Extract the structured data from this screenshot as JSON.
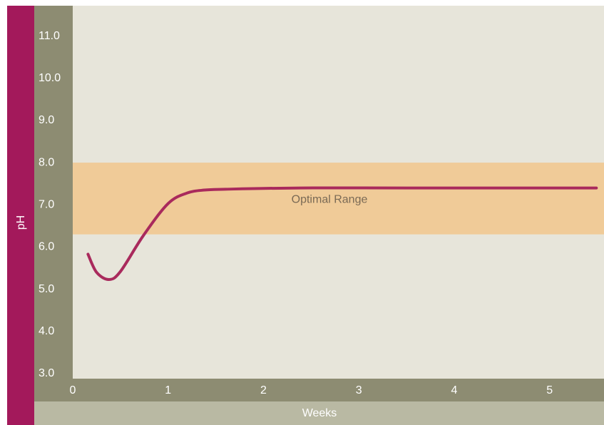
{
  "chart_data": {
    "type": "line",
    "y_label": "pH",
    "x_label": "Weeks",
    "x": [
      0.16,
      0.25,
      0.38,
      0.5,
      0.74,
      1.0,
      1.2,
      1.38,
      1.6,
      2.39,
      3.5,
      5.49
    ],
    "values": [
      5.83,
      5.4,
      5.23,
      5.42,
      6.27,
      7.03,
      7.28,
      7.35,
      7.37,
      7.4,
      7.4,
      7.4
    ],
    "color": "#a92a5c",
    "band": {
      "label": "Optimal Range",
      "range": [
        6.3,
        8.0
      ],
      "color": "#f0cb98"
    },
    "xlim": [
      0,
      5.57
    ],
    "xticks": [
      0,
      1,
      2,
      3,
      4,
      5
    ],
    "ylim": [
      2.88,
      11.72
    ],
    "yticks": [
      {
        "value": 3,
        "label": "3.0"
      },
      {
        "value": 4,
        "label": "4.0"
      },
      {
        "value": 5,
        "label": "5.0"
      },
      {
        "value": 6,
        "label": "6.0"
      },
      {
        "value": 7,
        "label": "7.0"
      },
      {
        "value": 8,
        "label": "8.0"
      },
      {
        "value": 9,
        "label": "9.0"
      },
      {
        "value": 10,
        "label": "10.0"
      },
      {
        "value": 11,
        "label": "11.0"
      }
    ]
  }
}
